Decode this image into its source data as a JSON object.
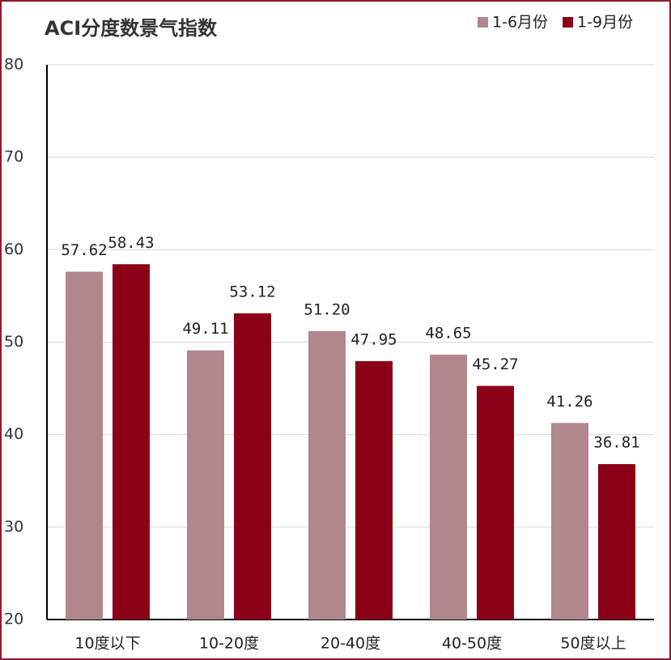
{
  "chart_data": {
    "type": "bar",
    "title": "ACI分度数景气指数",
    "categories": [
      "10度以下",
      "10-20度",
      "20-40度",
      "40-50度",
      "50度以上"
    ],
    "series": [
      {
        "name": "1-6月份",
        "color": "#b0878c",
        "values": [
          57.62,
          49.11,
          51.2,
          48.65,
          41.26
        ],
        "value_labels": [
          "57.62",
          "49.11",
          "51.20",
          "48.65",
          "41.26"
        ]
      },
      {
        "name": "1-9月份",
        "color": "#8b0016",
        "values": [
          58.43,
          53.12,
          47.95,
          45.27,
          36.81
        ],
        "value_labels": [
          "58.43",
          "53.12",
          "47.95",
          "45.27",
          "36.81"
        ]
      }
    ],
    "ylim": [
      20,
      80
    ],
    "yticks": [
      20,
      30,
      40,
      50,
      60,
      70,
      80
    ],
    "grid": true,
    "legend": "top-right"
  }
}
